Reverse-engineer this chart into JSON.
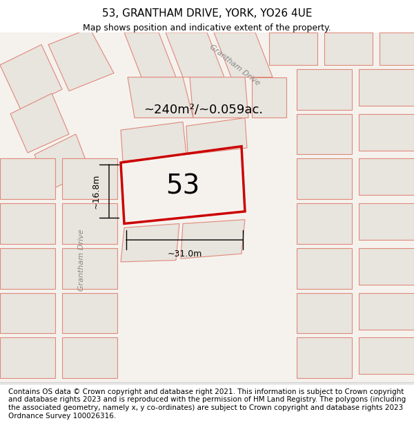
{
  "title_line1": "53, GRANTHAM DRIVE, YORK, YO26 4UE",
  "title_line2": "Map shows position and indicative extent of the property.",
  "footer_text": "Contains OS data © Crown copyright and database right 2021. This information is subject to Crown copyright and database rights 2023 and is reproduced with the permission of HM Land Registry. The polygons (including the associated geometry, namely x, y co-ordinates) are subject to Crown copyright and database rights 2023 Ordnance Survey 100026316.",
  "area_label": "~240m²/~0.059ac.",
  "house_number": "53",
  "dim_width": "~31.0m",
  "dim_height": "~16.8m",
  "bg_color": "#f0ede8",
  "map_bg": "#f5f2ee",
  "highlight_polygon_color": "#cc0000",
  "building_fill": "#e8e4de",
  "building_edge": "#e0897a",
  "road_label1": "Grantham Drive",
  "road_label2": "Grantham Drive",
  "title_fontsize": 11,
  "subtitle_fontsize": 9,
  "footer_fontsize": 7.5
}
